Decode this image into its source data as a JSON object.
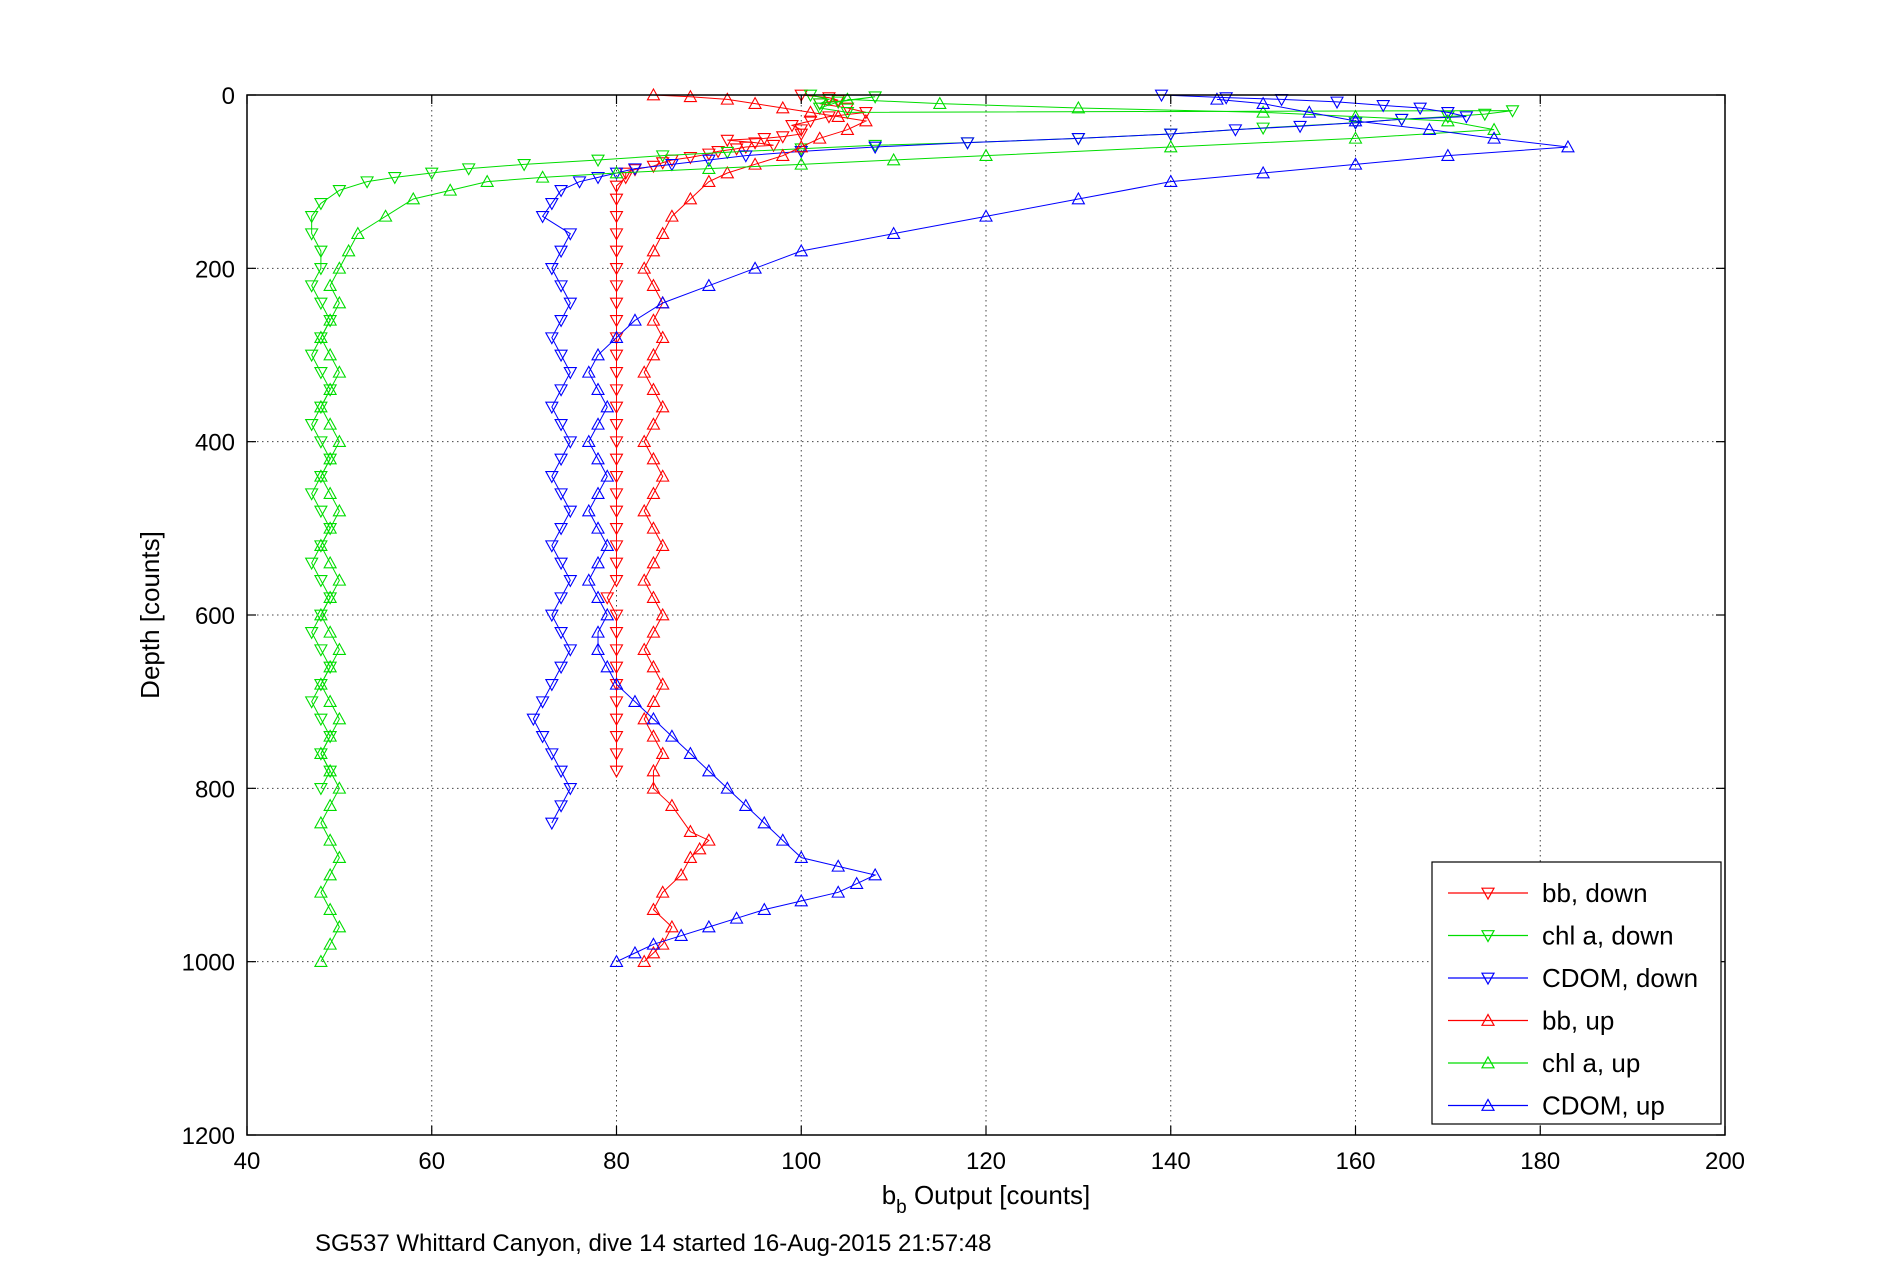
{
  "caption": "SG537 Whittard Canyon, dive 14 started 16-Aug-2015 21:57:48",
  "chart_data": {
    "type": "scatter",
    "title": "",
    "xlabel_main": "b",
    "xlabel_sub": "b",
    "xlabel_rest": " Output [counts]",
    "ylabel": "Depth [counts]",
    "xlim": [
      40,
      200
    ],
    "ylim": [
      0,
      1200
    ],
    "y_reversed": true,
    "grid": true,
    "legend_position": "lower-right",
    "x_ticks": [
      "40",
      "60",
      "80",
      "100",
      "120",
      "140",
      "160",
      "180",
      "200"
    ],
    "y_ticks": [
      "0",
      "200",
      "400",
      "600",
      "800",
      "1000",
      "1200"
    ],
    "series": [
      {
        "name": "bb, down",
        "color": "#ff0000",
        "marker": "triangle-down",
        "x": [
          100,
          103,
          104,
          102,
          105,
          107,
          103,
          101,
          99,
          100,
          100,
          98,
          96,
          92,
          95,
          97,
          94,
          93,
          91,
          90,
          88,
          86,
          85,
          84,
          82,
          81,
          81,
          80,
          80,
          80,
          80,
          80,
          80,
          80,
          80,
          80,
          80,
          80,
          80,
          80,
          80,
          80,
          80,
          80,
          80,
          80,
          80,
          80,
          80,
          80,
          80,
          79,
          80,
          80,
          80,
          80,
          80,
          80,
          80,
          80,
          80,
          80
        ],
        "y": [
          0,
          3,
          6,
          10,
          15,
          20,
          25,
          30,
          35,
          40,
          45,
          48,
          50,
          52,
          55,
          58,
          60,
          62,
          65,
          68,
          72,
          75,
          78,
          82,
          86,
          90,
          95,
          105,
          120,
          140,
          160,
          180,
          200,
          220,
          240,
          260,
          280,
          300,
          320,
          340,
          360,
          380,
          400,
          420,
          440,
          460,
          480,
          500,
          520,
          540,
          560,
          580,
          600,
          620,
          640,
          660,
          680,
          700,
          720,
          740,
          760,
          780
        ]
      },
      {
        "name": "chl a, down",
        "color": "#00dd00",
        "marker": "triangle-down",
        "x": [
          101,
          103,
          102,
          108,
          104,
          102,
          105,
          177,
          174,
          170,
          165,
          160,
          150,
          140,
          130,
          118,
          108,
          100,
          92,
          85,
          78,
          70,
          64,
          60,
          56,
          53,
          50,
          48,
          47,
          47,
          48,
          48,
          47,
          48,
          49,
          48,
          47,
          48,
          49,
          48,
          47,
          48,
          49,
          48,
          47,
          48,
          49,
          48,
          47,
          48,
          49,
          48,
          47,
          48,
          49,
          48,
          47,
          48,
          49,
          48,
          49,
          48
        ],
        "y": [
          0,
          5,
          10,
          2,
          8,
          15,
          20,
          18,
          22,
          25,
          28,
          32,
          38,
          45,
          50,
          55,
          58,
          62,
          66,
          70,
          75,
          80,
          85,
          90,
          95,
          100,
          110,
          125,
          140,
          160,
          180,
          200,
          220,
          240,
          260,
          280,
          300,
          320,
          340,
          360,
          380,
          400,
          420,
          440,
          460,
          480,
          500,
          520,
          540,
          560,
          580,
          600,
          620,
          640,
          660,
          680,
          700,
          720,
          740,
          760,
          780,
          800
        ]
      },
      {
        "name": "CDOM, down",
        "color": "#0000ff",
        "marker": "triangle-down",
        "x": [
          139,
          146,
          152,
          158,
          163,
          167,
          170,
          172,
          165,
          160,
          154,
          147,
          140,
          130,
          118,
          108,
          100,
          94,
          90,
          86,
          82,
          80,
          78,
          76,
          74,
          73,
          72,
          75,
          74,
          73,
          74,
          75,
          74,
          73,
          74,
          75,
          74,
          73,
          74,
          75,
          74,
          73,
          74,
          75,
          74,
          73,
          74,
          75,
          74,
          73,
          74,
          75,
          74,
          73,
          72,
          71,
          72,
          73,
          74,
          75,
          74,
          73
        ],
        "y": [
          0,
          3,
          5,
          8,
          12,
          15,
          20,
          25,
          28,
          32,
          36,
          40,
          45,
          50,
          55,
          60,
          65,
          70,
          75,
          80,
          85,
          90,
          95,
          100,
          110,
          125,
          140,
          160,
          180,
          200,
          220,
          240,
          260,
          280,
          300,
          320,
          340,
          360,
          380,
          400,
          420,
          440,
          460,
          480,
          500,
          520,
          540,
          560,
          580,
          600,
          620,
          640,
          660,
          680,
          700,
          720,
          740,
          760,
          780,
          800,
          820,
          840
        ]
      },
      {
        "name": "bb, up",
        "color": "#ff0000",
        "marker": "triangle-up",
        "x": [
          83,
          84,
          85,
          86,
          84,
          85,
          87,
          88,
          89,
          90,
          88,
          86,
          84,
          84,
          85,
          84,
          83,
          84,
          85,
          84,
          83,
          84,
          85,
          84,
          83,
          84,
          85,
          84,
          83,
          84,
          85,
          84,
          83,
          84,
          85,
          84,
          83,
          84,
          85,
          84,
          85,
          84,
          83,
          84,
          85,
          86,
          88,
          90,
          92,
          95,
          98,
          100,
          102,
          105,
          107,
          104,
          101,
          98,
          95,
          92,
          88,
          84
        ],
        "y": [
          1000,
          990,
          980,
          960,
          940,
          920,
          900,
          880,
          870,
          860,
          850,
          820,
          800,
          780,
          760,
          740,
          720,
          700,
          680,
          660,
          640,
          620,
          600,
          580,
          560,
          540,
          520,
          500,
          480,
          460,
          440,
          420,
          400,
          380,
          360,
          340,
          320,
          300,
          280,
          260,
          240,
          220,
          200,
          180,
          160,
          140,
          120,
          100,
          90,
          80,
          70,
          60,
          50,
          40,
          30,
          25,
          20,
          15,
          10,
          5,
          2,
          0
        ]
      },
      {
        "name": "chl a, up",
        "color": "#00dd00",
        "marker": "triangle-up",
        "x": [
          48,
          49,
          50,
          49,
          48,
          49,
          50,
          49,
          48,
          49,
          50,
          49,
          48,
          49,
          50,
          49,
          48,
          49,
          50,
          49,
          48,
          49,
          50,
          49,
          48,
          49,
          50,
          49,
          48,
          49,
          50,
          49,
          48,
          49,
          50,
          49,
          48,
          49,
          50,
          49,
          50,
          51,
          52,
          55,
          58,
          62,
          66,
          72,
          80,
          90,
          100,
          110,
          120,
          140,
          160,
          175,
          170,
          160,
          150,
          130,
          115,
          105
        ],
        "y": [
          1000,
          980,
          960,
          940,
          920,
          900,
          880,
          860,
          840,
          820,
          800,
          780,
          760,
          740,
          720,
          700,
          680,
          660,
          640,
          620,
          600,
          580,
          560,
          540,
          520,
          500,
          480,
          460,
          440,
          420,
          400,
          380,
          360,
          340,
          320,
          300,
          280,
          260,
          240,
          220,
          200,
          180,
          160,
          140,
          120,
          110,
          100,
          95,
          90,
          85,
          80,
          75,
          70,
          60,
          50,
          40,
          30,
          25,
          20,
          15,
          10,
          5
        ]
      },
      {
        "name": "CDOM, up",
        "color": "#0000ff",
        "marker": "triangle-up",
        "x": [
          80,
          82,
          84,
          87,
          90,
          93,
          96,
          100,
          104,
          106,
          108,
          104,
          100,
          98,
          96,
          94,
          92,
          90,
          88,
          86,
          84,
          82,
          80,
          79,
          78,
          78,
          79,
          78,
          77,
          78,
          79,
          78,
          77,
          78,
          79,
          78,
          77,
          78,
          79,
          78,
          77,
          78,
          80,
          82,
          85,
          90,
          95,
          100,
          110,
          120,
          130,
          140,
          150,
          160,
          170,
          183,
          175,
          168,
          160,
          155,
          150,
          145
        ],
        "y": [
          1000,
          990,
          980,
          970,
          960,
          950,
          940,
          930,
          920,
          910,
          900,
          890,
          880,
          860,
          840,
          820,
          800,
          780,
          760,
          740,
          720,
          700,
          680,
          660,
          640,
          620,
          600,
          580,
          560,
          540,
          520,
          500,
          480,
          460,
          440,
          420,
          400,
          380,
          360,
          340,
          320,
          300,
          280,
          260,
          240,
          220,
          200,
          180,
          160,
          140,
          120,
          100,
          90,
          80,
          70,
          60,
          50,
          40,
          30,
          20,
          10,
          5
        ]
      }
    ]
  }
}
